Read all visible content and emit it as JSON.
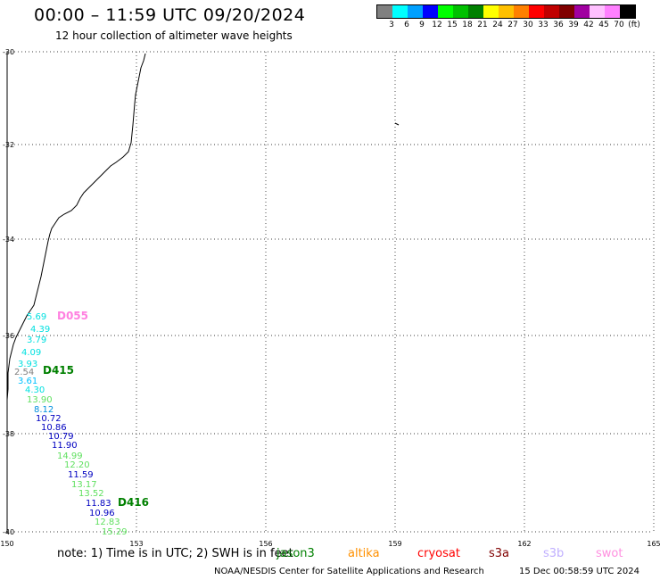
{
  "header": {
    "title": "00:00 – 11:59 UTC 09/20/2024",
    "subtitle": "12 hour collection of altimeter wave heights"
  },
  "color_scale": {
    "colors": [
      "#808080",
      "#00ffff",
      "#00a0ff",
      "#0000ff",
      "#00ff00",
      "#00c000",
      "#008000",
      "#ffff00",
      "#ffc000",
      "#ff8000",
      "#ff0000",
      "#c00000",
      "#800000",
      "#a000a0",
      "#ffc0ff",
      "#ff80ff",
      "#000000"
    ],
    "labels": [
      "3",
      "6",
      "9",
      "12",
      "15",
      "18",
      "21",
      "24",
      "27",
      "30",
      "33",
      "36",
      "39",
      "42",
      "45",
      "70",
      "(ft)"
    ]
  },
  "map": {
    "lon_ticks": [
      "150",
      "153",
      "156",
      "159",
      "162",
      "165"
    ],
    "lat_ticks": [
      "-30",
      "-32",
      "-34",
      "-36",
      "-38",
      "-40"
    ],
    "lon_range": [
      150,
      165
    ],
    "lat_range": [
      -40,
      -30
    ]
  },
  "track_labels": [
    {
      "text": "5.69",
      "color": "#00e0e0"
    },
    {
      "text": "4.39",
      "color": "#00e0e0"
    },
    {
      "text": "3.79",
      "color": "#00e0e0"
    },
    {
      "text": "4.09",
      "color": "#00e0e0"
    },
    {
      "text": "3.93",
      "color": "#00e0e0"
    },
    {
      "text": "2.54",
      "color": "#808080"
    },
    {
      "text": "3.61",
      "color": "#00c0ff"
    },
    {
      "text": "4.30",
      "color": "#00e0e0"
    },
    {
      "text": "13.90",
      "color": "#60e060"
    },
    {
      "text": "8.12",
      "color": "#0090e0"
    },
    {
      "text": "10.72",
      "color": "#0000c0"
    },
    {
      "text": "10.86",
      "color": "#0000c0"
    },
    {
      "text": "10.79",
      "color": "#0000c0"
    },
    {
      "text": "11.90",
      "color": "#0000c0"
    },
    {
      "text": "14.99",
      "color": "#60e060"
    },
    {
      "text": "12.20",
      "color": "#60e060"
    },
    {
      "text": "11.59",
      "color": "#0000c0"
    },
    {
      "text": "13.17",
      "color": "#60e060"
    },
    {
      "text": "13.52",
      "color": "#60e060"
    },
    {
      "text": "11.83",
      "color": "#0000c0"
    },
    {
      "text": "10.96",
      "color": "#0000c0"
    },
    {
      "text": "12.83",
      "color": "#60e060"
    },
    {
      "text": "15.29",
      "color": "#60e060"
    }
  ],
  "pass_labels": [
    {
      "text": "D055",
      "color": "#ff80e0"
    },
    {
      "text": "D415",
      "color": "#008000"
    },
    {
      "text": "D416",
      "color": "#008000"
    }
  ],
  "footer": {
    "note": "note:  1) Time is in UTC; 2) SWH is in feet",
    "satellites": [
      {
        "name": "jason3",
        "color": "#008000"
      },
      {
        "name": "altika",
        "color": "#ff9000"
      },
      {
        "name": "cryosat",
        "color": "#ff0000"
      },
      {
        "name": "s3a",
        "color": "#800000"
      },
      {
        "name": "s3b",
        "color": "#c0b0ff"
      },
      {
        "name": "swot",
        "color": "#ff90e0"
      }
    ],
    "credit": "NOAA/NESDIS Center for Satellite Applications and Research",
    "timestamp": "15 Dec 00:58:59 UTC 2024"
  }
}
